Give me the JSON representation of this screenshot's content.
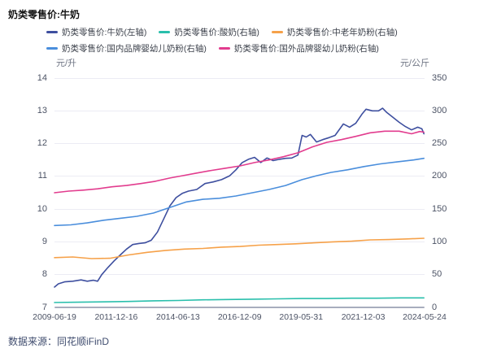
{
  "header": {
    "title": "奶类零售价:牛奶"
  },
  "source": {
    "label": "数据来源：同花顺iFinD"
  },
  "chart_data": {
    "type": "line",
    "title": "奶类零售价:牛奶",
    "grid": true,
    "legend_position": "top",
    "x_tick_labels": [
      "2009-06-19",
      "2011-12-16",
      "2014-06-13",
      "2016-12-09",
      "2019-05-31",
      "2021-12-03",
      "2024-05-24"
    ],
    "x_range_decimal_years": [
      2009.469,
      2024.4
    ],
    "left_axis": {
      "unit": "元/升",
      "min": 7,
      "max": 14,
      "ticks": [
        14,
        13,
        12,
        11,
        10,
        9,
        8,
        7
      ]
    },
    "right_axis": {
      "unit": "元/公斤",
      "min": 0,
      "max": 350,
      "ticks": [
        350,
        300,
        250,
        200,
        150,
        100,
        50,
        0
      ]
    },
    "legend_rows": [
      [
        0,
        1,
        2
      ],
      [
        3,
        4
      ]
    ],
    "series": [
      {
        "name": "奶类零售价:牛奶(左轴)",
        "axis": "left",
        "unit": "元/升",
        "color": "#3e4f9f",
        "points": [
          [
            "2009-06",
            7.62
          ],
          [
            "2009-08",
            7.72
          ],
          [
            "2009-11",
            7.78
          ],
          [
            "2010-03",
            7.8
          ],
          [
            "2010-07",
            7.84
          ],
          [
            "2010-10",
            7.8
          ],
          [
            "2011-01",
            7.83
          ],
          [
            "2011-03",
            7.8
          ],
          [
            "2011-05",
            8.0
          ],
          [
            "2011-08",
            8.22
          ],
          [
            "2011-11",
            8.42
          ],
          [
            "2012-02",
            8.6
          ],
          [
            "2012-05",
            8.78
          ],
          [
            "2012-08",
            8.92
          ],
          [
            "2012-11",
            8.95
          ],
          [
            "2013-02",
            8.97
          ],
          [
            "2013-05",
            9.05
          ],
          [
            "2013-08",
            9.3
          ],
          [
            "2013-11",
            9.7
          ],
          [
            "2014-02",
            10.1
          ],
          [
            "2014-05",
            10.35
          ],
          [
            "2014-08",
            10.48
          ],
          [
            "2014-11",
            10.55
          ],
          [
            "2015-03",
            10.6
          ],
          [
            "2015-07",
            10.78
          ],
          [
            "2015-11",
            10.83
          ],
          [
            "2016-03",
            10.9
          ],
          [
            "2016-07",
            11.02
          ],
          [
            "2016-10",
            11.2
          ],
          [
            "2017-01",
            11.42
          ],
          [
            "2017-04",
            11.52
          ],
          [
            "2017-07",
            11.58
          ],
          [
            "2017-10",
            11.42
          ],
          [
            "2018-01",
            11.56
          ],
          [
            "2018-04",
            11.48
          ],
          [
            "2018-07",
            11.52
          ],
          [
            "2018-10",
            11.55
          ],
          [
            "2019-01",
            11.56
          ],
          [
            "2019-04",
            11.65
          ],
          [
            "2019-06",
            12.25
          ],
          [
            "2019-08",
            12.2
          ],
          [
            "2019-10",
            12.28
          ],
          [
            "2020-01",
            12.05
          ],
          [
            "2020-04",
            12.12
          ],
          [
            "2020-07",
            12.18
          ],
          [
            "2020-10",
            12.25
          ],
          [
            "2021-02",
            12.6
          ],
          [
            "2021-05",
            12.5
          ],
          [
            "2021-08",
            12.62
          ],
          [
            "2021-11",
            12.9
          ],
          [
            "2022-01",
            13.05
          ],
          [
            "2022-04",
            13.0
          ],
          [
            "2022-07",
            13.0
          ],
          [
            "2022-09",
            13.08
          ],
          [
            "2022-11",
            12.95
          ],
          [
            "2023-02",
            12.8
          ],
          [
            "2023-05",
            12.65
          ],
          [
            "2023-08",
            12.52
          ],
          [
            "2023-11",
            12.42
          ],
          [
            "2024-02",
            12.5
          ],
          [
            "2024-04",
            12.45
          ],
          [
            "2024-05",
            12.3
          ]
        ]
      },
      {
        "name": "奶类零售价:酸奶(右轴)",
        "axis": "right",
        "unit": "元/公斤",
        "color": "#2abfac",
        "points": [
          [
            "2009-06",
            7.5
          ],
          [
            "2010-06",
            8
          ],
          [
            "2011-06",
            8.5
          ],
          [
            "2012-06",
            9
          ],
          [
            "2013-06",
            10
          ],
          [
            "2014-06",
            10.5
          ],
          [
            "2015-06",
            11.5
          ],
          [
            "2016-06",
            12
          ],
          [
            "2017-06",
            12.5
          ],
          [
            "2018-06",
            13
          ],
          [
            "2019-06",
            13.5
          ],
          [
            "2020-06",
            13.5
          ],
          [
            "2021-06",
            14
          ],
          [
            "2022-06",
            14
          ],
          [
            "2023-06",
            14.5
          ],
          [
            "2024-05",
            14.5
          ]
        ]
      },
      {
        "name": "奶类零售价:中老年奶粉(右轴)",
        "axis": "right",
        "unit": "元/公斤",
        "color": "#f6a149",
        "points": [
          [
            "2009-06",
            76
          ],
          [
            "2010-03",
            77
          ],
          [
            "2010-12",
            74.5
          ],
          [
            "2011-09",
            75
          ],
          [
            "2012-06",
            80
          ],
          [
            "2013-03",
            84
          ],
          [
            "2013-12",
            87
          ],
          [
            "2014-09",
            89
          ],
          [
            "2015-06",
            90
          ],
          [
            "2016-03",
            92
          ],
          [
            "2016-12",
            93
          ],
          [
            "2017-09",
            95
          ],
          [
            "2018-06",
            96
          ],
          [
            "2019-03",
            97
          ],
          [
            "2019-12",
            98.5
          ],
          [
            "2020-09",
            100
          ],
          [
            "2021-06",
            101
          ],
          [
            "2022-03",
            103
          ],
          [
            "2022-12",
            103.5
          ],
          [
            "2023-09",
            104.5
          ],
          [
            "2024-05",
            105.5
          ]
        ]
      },
      {
        "name": "奶类零售价:国内品牌婴幼儿奶粉(右轴)",
        "axis": "right",
        "unit": "元/公斤",
        "color": "#4a8edc",
        "points": [
          [
            "2009-06",
            125
          ],
          [
            "2010-02",
            126
          ],
          [
            "2010-10",
            129
          ],
          [
            "2011-06",
            133
          ],
          [
            "2012-02",
            136
          ],
          [
            "2012-10",
            139
          ],
          [
            "2013-06",
            144
          ],
          [
            "2014-02",
            152.5
          ],
          [
            "2014-10",
            161
          ],
          [
            "2015-06",
            165
          ],
          [
            "2016-02",
            166.5
          ],
          [
            "2016-10",
            170
          ],
          [
            "2017-06",
            175
          ],
          [
            "2018-02",
            180
          ],
          [
            "2018-10",
            186
          ],
          [
            "2019-06",
            195
          ],
          [
            "2020-01",
            201
          ],
          [
            "2020-08",
            206
          ],
          [
            "2021-04",
            210
          ],
          [
            "2021-12",
            215
          ],
          [
            "2022-08",
            219
          ],
          [
            "2023-04",
            222
          ],
          [
            "2023-12",
            225
          ],
          [
            "2024-05",
            227.5
          ]
        ]
      },
      {
        "name": "奶类零售价:国外品牌婴幼儿奶粉(右轴)",
        "axis": "right",
        "unit": "元/公斤",
        "color": "#e23c8e",
        "points": [
          [
            "2009-06",
            175
          ],
          [
            "2010-01",
            177.5
          ],
          [
            "2010-08",
            179
          ],
          [
            "2011-03",
            181
          ],
          [
            "2011-10",
            184
          ],
          [
            "2012-05",
            186
          ],
          [
            "2012-12",
            189
          ],
          [
            "2013-07",
            192.5
          ],
          [
            "2014-02",
            197.5
          ],
          [
            "2014-08",
            201
          ],
          [
            "2015-03",
            205
          ],
          [
            "2015-10",
            209
          ],
          [
            "2016-05",
            212.5
          ],
          [
            "2016-12",
            216
          ],
          [
            "2017-07",
            221
          ],
          [
            "2018-02",
            225
          ],
          [
            "2018-09",
            230
          ],
          [
            "2019-04",
            236
          ],
          [
            "2019-11",
            245
          ],
          [
            "2020-06",
            252
          ],
          [
            "2021-01",
            256
          ],
          [
            "2021-08",
            261
          ],
          [
            "2022-03",
            266.5
          ],
          [
            "2022-10",
            269
          ],
          [
            "2023-05",
            269
          ],
          [
            "2023-11",
            265
          ],
          [
            "2024-03",
            268.5
          ],
          [
            "2024-05",
            267.5
          ]
        ]
      }
    ]
  }
}
